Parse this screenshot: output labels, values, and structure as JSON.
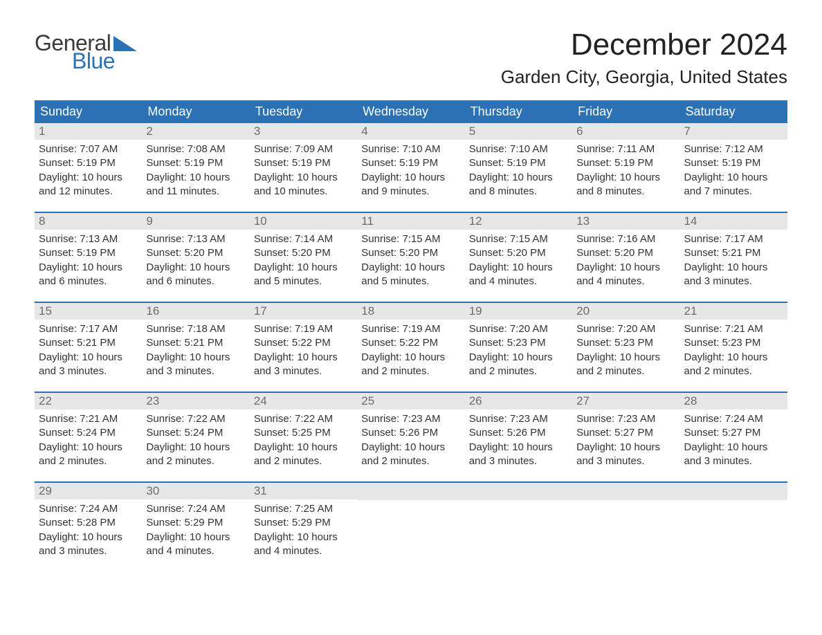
{
  "logo": {
    "word1": "General",
    "word2": "Blue",
    "accent_color": "#2a72b5"
  },
  "title": "December 2024",
  "location": "Garden City, Georgia, United States",
  "header_bg": "#2a72b5",
  "header_fg": "#ffffff",
  "daynum_bg": "#e7e7e7",
  "weekdays": [
    "Sunday",
    "Monday",
    "Tuesday",
    "Wednesday",
    "Thursday",
    "Friday",
    "Saturday"
  ],
  "weeks": [
    [
      {
        "n": "1",
        "sunrise": "Sunrise: 7:07 AM",
        "sunset": "Sunset: 5:19 PM",
        "day": "Daylight: 10 hours and 12 minutes."
      },
      {
        "n": "2",
        "sunrise": "Sunrise: 7:08 AM",
        "sunset": "Sunset: 5:19 PM",
        "day": "Daylight: 10 hours and 11 minutes."
      },
      {
        "n": "3",
        "sunrise": "Sunrise: 7:09 AM",
        "sunset": "Sunset: 5:19 PM",
        "day": "Daylight: 10 hours and 10 minutes."
      },
      {
        "n": "4",
        "sunrise": "Sunrise: 7:10 AM",
        "sunset": "Sunset: 5:19 PM",
        "day": "Daylight: 10 hours and 9 minutes."
      },
      {
        "n": "5",
        "sunrise": "Sunrise: 7:10 AM",
        "sunset": "Sunset: 5:19 PM",
        "day": "Daylight: 10 hours and 8 minutes."
      },
      {
        "n": "6",
        "sunrise": "Sunrise: 7:11 AM",
        "sunset": "Sunset: 5:19 PM",
        "day": "Daylight: 10 hours and 8 minutes."
      },
      {
        "n": "7",
        "sunrise": "Sunrise: 7:12 AM",
        "sunset": "Sunset: 5:19 PM",
        "day": "Daylight: 10 hours and 7 minutes."
      }
    ],
    [
      {
        "n": "8",
        "sunrise": "Sunrise: 7:13 AM",
        "sunset": "Sunset: 5:19 PM",
        "day": "Daylight: 10 hours and 6 minutes."
      },
      {
        "n": "9",
        "sunrise": "Sunrise: 7:13 AM",
        "sunset": "Sunset: 5:20 PM",
        "day": "Daylight: 10 hours and 6 minutes."
      },
      {
        "n": "10",
        "sunrise": "Sunrise: 7:14 AM",
        "sunset": "Sunset: 5:20 PM",
        "day": "Daylight: 10 hours and 5 minutes."
      },
      {
        "n": "11",
        "sunrise": "Sunrise: 7:15 AM",
        "sunset": "Sunset: 5:20 PM",
        "day": "Daylight: 10 hours and 5 minutes."
      },
      {
        "n": "12",
        "sunrise": "Sunrise: 7:15 AM",
        "sunset": "Sunset: 5:20 PM",
        "day": "Daylight: 10 hours and 4 minutes."
      },
      {
        "n": "13",
        "sunrise": "Sunrise: 7:16 AM",
        "sunset": "Sunset: 5:20 PM",
        "day": "Daylight: 10 hours and 4 minutes."
      },
      {
        "n": "14",
        "sunrise": "Sunrise: 7:17 AM",
        "sunset": "Sunset: 5:21 PM",
        "day": "Daylight: 10 hours and 3 minutes."
      }
    ],
    [
      {
        "n": "15",
        "sunrise": "Sunrise: 7:17 AM",
        "sunset": "Sunset: 5:21 PM",
        "day": "Daylight: 10 hours and 3 minutes."
      },
      {
        "n": "16",
        "sunrise": "Sunrise: 7:18 AM",
        "sunset": "Sunset: 5:21 PM",
        "day": "Daylight: 10 hours and 3 minutes."
      },
      {
        "n": "17",
        "sunrise": "Sunrise: 7:19 AM",
        "sunset": "Sunset: 5:22 PM",
        "day": "Daylight: 10 hours and 3 minutes."
      },
      {
        "n": "18",
        "sunrise": "Sunrise: 7:19 AM",
        "sunset": "Sunset: 5:22 PM",
        "day": "Daylight: 10 hours and 2 minutes."
      },
      {
        "n": "19",
        "sunrise": "Sunrise: 7:20 AM",
        "sunset": "Sunset: 5:23 PM",
        "day": "Daylight: 10 hours and 2 minutes."
      },
      {
        "n": "20",
        "sunrise": "Sunrise: 7:20 AM",
        "sunset": "Sunset: 5:23 PM",
        "day": "Daylight: 10 hours and 2 minutes."
      },
      {
        "n": "21",
        "sunrise": "Sunrise: 7:21 AM",
        "sunset": "Sunset: 5:23 PM",
        "day": "Daylight: 10 hours and 2 minutes."
      }
    ],
    [
      {
        "n": "22",
        "sunrise": "Sunrise: 7:21 AM",
        "sunset": "Sunset: 5:24 PM",
        "day": "Daylight: 10 hours and 2 minutes."
      },
      {
        "n": "23",
        "sunrise": "Sunrise: 7:22 AM",
        "sunset": "Sunset: 5:24 PM",
        "day": "Daylight: 10 hours and 2 minutes."
      },
      {
        "n": "24",
        "sunrise": "Sunrise: 7:22 AM",
        "sunset": "Sunset: 5:25 PM",
        "day": "Daylight: 10 hours and 2 minutes."
      },
      {
        "n": "25",
        "sunrise": "Sunrise: 7:23 AM",
        "sunset": "Sunset: 5:26 PM",
        "day": "Daylight: 10 hours and 2 minutes."
      },
      {
        "n": "26",
        "sunrise": "Sunrise: 7:23 AM",
        "sunset": "Sunset: 5:26 PM",
        "day": "Daylight: 10 hours and 3 minutes."
      },
      {
        "n": "27",
        "sunrise": "Sunrise: 7:23 AM",
        "sunset": "Sunset: 5:27 PM",
        "day": "Daylight: 10 hours and 3 minutes."
      },
      {
        "n": "28",
        "sunrise": "Sunrise: 7:24 AM",
        "sunset": "Sunset: 5:27 PM",
        "day": "Daylight: 10 hours and 3 minutes."
      }
    ],
    [
      {
        "n": "29",
        "sunrise": "Sunrise: 7:24 AM",
        "sunset": "Sunset: 5:28 PM",
        "day": "Daylight: 10 hours and 3 minutes."
      },
      {
        "n": "30",
        "sunrise": "Sunrise: 7:24 AM",
        "sunset": "Sunset: 5:29 PM",
        "day": "Daylight: 10 hours and 4 minutes."
      },
      {
        "n": "31",
        "sunrise": "Sunrise: 7:25 AM",
        "sunset": "Sunset: 5:29 PM",
        "day": "Daylight: 10 hours and 4 minutes."
      },
      {
        "empty": true
      },
      {
        "empty": true
      },
      {
        "empty": true
      },
      {
        "empty": true
      }
    ]
  ]
}
